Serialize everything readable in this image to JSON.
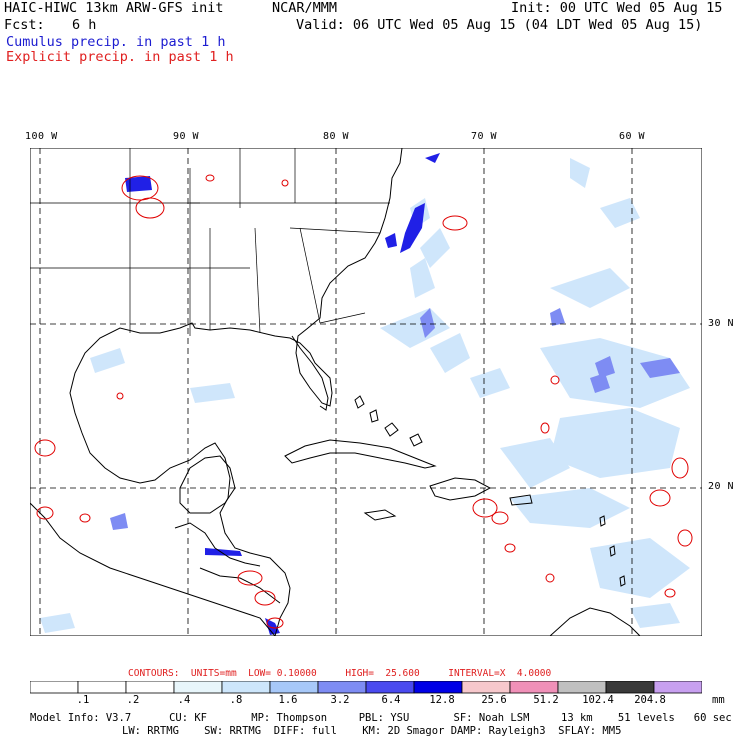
{
  "header": {
    "model_name": "HAIC-HIWC 13km ARW-GFS init",
    "org": "NCAR/MMM",
    "init": "Init: 00 UTC Wed 05 Aug 15",
    "fcst_label": "Fcst:",
    "fcst_value": "6 h",
    "valid": "Valid: 06 UTC Wed 05 Aug 15 (04 LDT Wed 05 Aug 15)",
    "cumulus": "Cumulus precip. in past 1 h",
    "explicit": "Explicit precip. in past 1 h"
  },
  "map": {
    "lon_labels": [
      "100 W",
      "90 W",
      "80 W",
      "70 W",
      "60 W"
    ],
    "lat_labels": [
      "30 N",
      "20 N"
    ],
    "colors": {
      "land_line": "#000000",
      "grid": "#000000",
      "light_blue": "#cfe6fb",
      "mid_blue": "#6a6af0",
      "dark_blue": "#0000ee",
      "contour_red": "#e00000"
    }
  },
  "colorbar": {
    "labels": [
      ".1",
      ".2",
      ".4",
      ".8",
      "1.6",
      "3.2",
      "6.4",
      "12.8",
      "25.6",
      "51.2",
      "102.4",
      "204.8"
    ],
    "unit": "mm",
    "colors": [
      "#ffffff",
      "#ffffff",
      "#ffffff",
      "#e8f6fb",
      "#cde6fb",
      "#a7c8f8",
      "#7e8cf3",
      "#4a4aef",
      "#0000e6",
      "#f7c8cc",
      "#f090b8",
      "#c0c0c0",
      "#3a3a3a",
      "#c8a0f0"
    ]
  },
  "contours": {
    "text": "CONTOURS:  UNITS=mm  LOW= 0.10000     HIGH=  25.600     INTERVAL=X  4.0000"
  },
  "model_info": {
    "line1": "Model Info: V3.7      CU: KF       MP: Thompson     PBL: YSU       SF: Noah LSM     13 km    51 levels   60 sec",
    "line2": "LW: RRTMG    SW: RRTMG  DIFF: full    KM: 2D Smagor DAMP: Rayleigh3  SFLAY: MM5"
  }
}
